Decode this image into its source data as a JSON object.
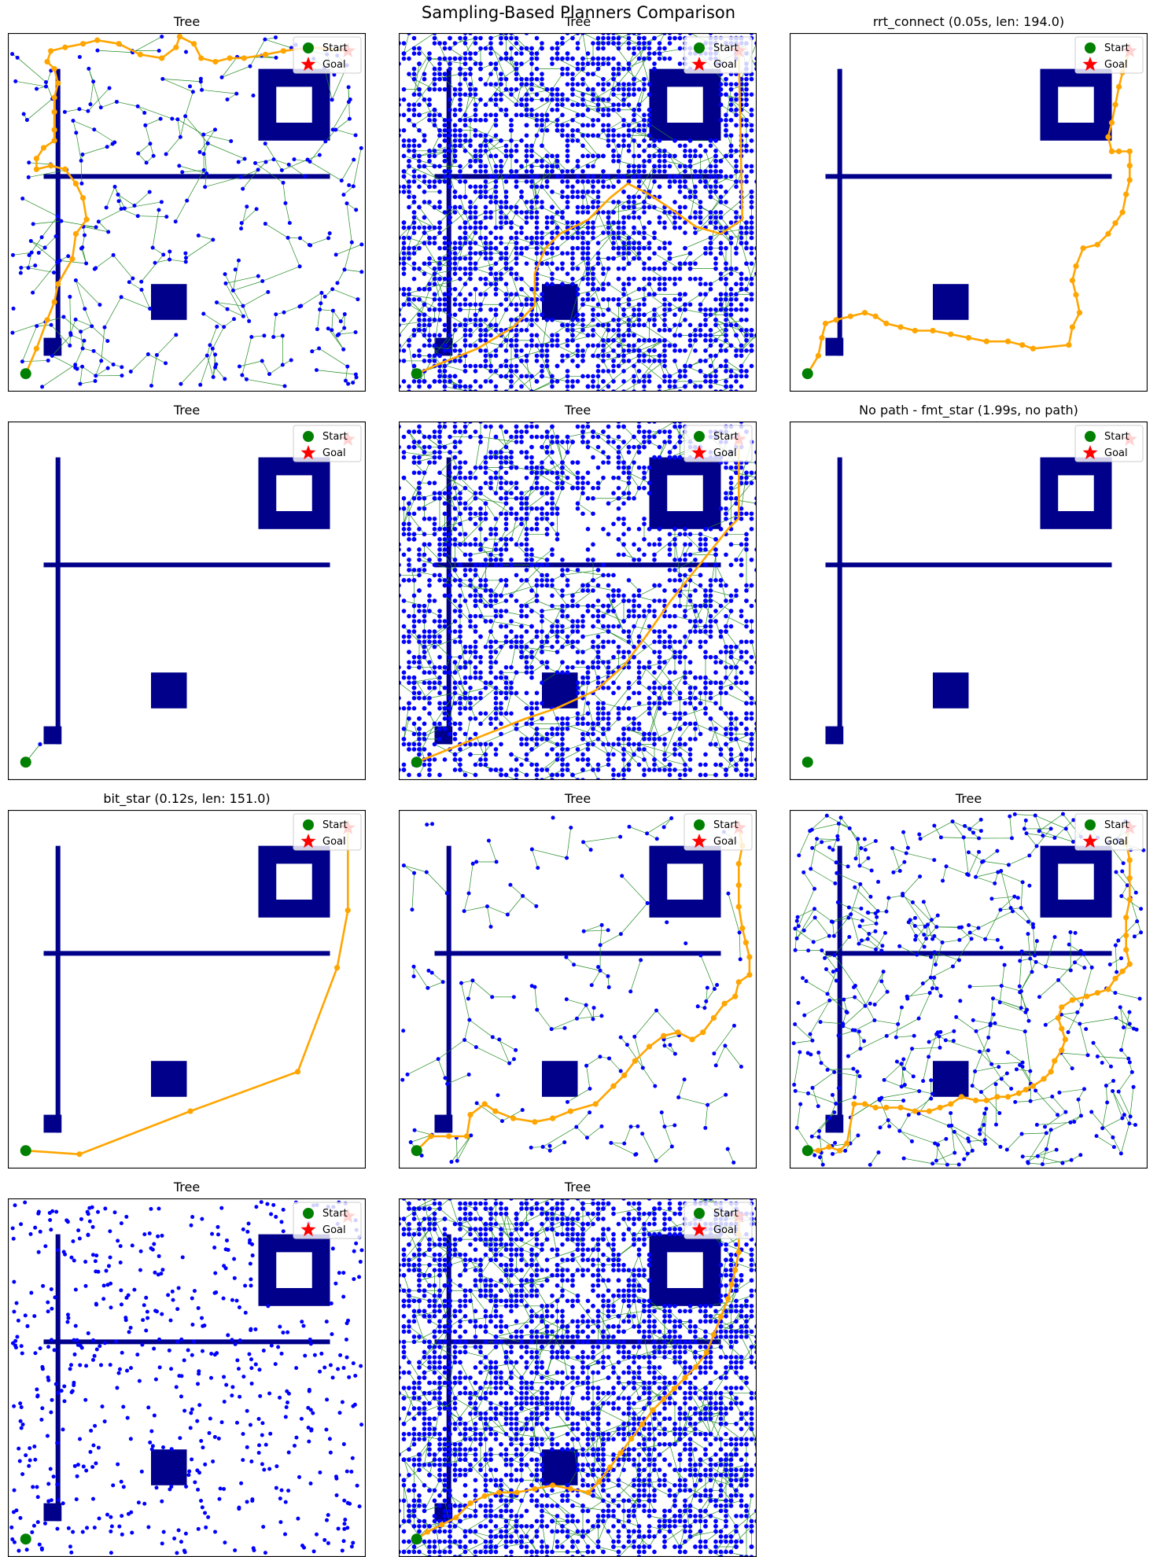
{
  "figure": {
    "suptitle": "Sampling-Based Planners Comparison",
    "colors": {
      "obstacle": "#00008b",
      "node": "#0000ff",
      "edge": "#228b22",
      "path": "#ffa500",
      "start": "#008000",
      "goal": "#ff0000"
    },
    "legend": {
      "start_label": "Start",
      "goal_label": "Goal",
      "location": "upper right"
    }
  },
  "obstacles": {
    "vertical_bar": {
      "x": [
        14,
        14
      ],
      "y": [
        10,
        90
      ]
    },
    "horizontal_bar": {
      "x": [
        10,
        90
      ],
      "y": [
        60,
        60
      ]
    },
    "ring_outer": {
      "x": [
        70,
        90
      ],
      "y": [
        70,
        90
      ]
    },
    "ring_hole": {
      "x": [
        75,
        85
      ],
      "y": [
        75,
        85
      ]
    },
    "square_large": {
      "x": [
        40,
        50
      ],
      "y": [
        20,
        30
      ]
    },
    "square_small": {
      "x": [
        10,
        15
      ],
      "y": [
        10,
        15
      ]
    }
  },
  "chart_data": [
    {
      "type": "scatter",
      "title": "Tree",
      "xlim": [
        0,
        100
      ],
      "ylim": [
        0,
        100
      ],
      "start": [
        5,
        5
      ],
      "goal": [
        95,
        95
      ],
      "tree": {
        "style": "sparse",
        "nodes": 330,
        "edges": true
      },
      "path": {
        "shown": true,
        "nodes_marked": true,
        "points": [
          [
            5,
            5
          ],
          [
            8,
            12
          ],
          [
            11,
            20
          ],
          [
            13,
            25
          ],
          [
            14,
            30
          ],
          [
            18,
            37
          ],
          [
            19,
            44
          ],
          [
            22,
            48
          ],
          [
            21,
            54
          ],
          [
            19,
            58
          ],
          [
            16,
            62
          ],
          [
            12,
            63
          ],
          [
            8,
            62
          ],
          [
            8,
            65
          ],
          [
            10,
            68
          ],
          [
            13,
            70
          ],
          [
            13,
            73
          ],
          [
            13,
            78
          ],
          [
            13,
            82
          ],
          [
            14,
            86
          ],
          [
            13,
            90
          ],
          [
            11,
            92
          ],
          [
            12,
            95
          ],
          [
            16,
            96
          ],
          [
            21,
            97
          ],
          [
            25,
            98
          ],
          [
            31,
            97
          ],
          [
            37,
            94
          ],
          [
            43,
            93
          ],
          [
            47,
            96
          ],
          [
            48,
            99
          ],
          [
            52,
            97
          ],
          [
            54,
            93
          ],
          [
            58,
            92
          ],
          [
            62,
            93
          ],
          [
            66,
            93
          ],
          [
            72,
            94
          ],
          [
            77,
            95
          ],
          [
            85,
            96
          ],
          [
            95,
            95
          ]
        ]
      }
    },
    {
      "type": "scatter",
      "title": "Tree",
      "xlim": [
        0,
        100
      ],
      "ylim": [
        0,
        100
      ],
      "start": [
        5,
        5
      ],
      "goal": [
        95,
        95
      ],
      "tree": {
        "style": "dense",
        "nodes": 3200,
        "edges": true
      },
      "path": {
        "shown": true,
        "nodes_marked": false,
        "points": [
          [
            5,
            5
          ],
          [
            12,
            8
          ],
          [
            22,
            12
          ],
          [
            32,
            18
          ],
          [
            38,
            24
          ],
          [
            38,
            33
          ],
          [
            41,
            40
          ],
          [
            45,
            44
          ],
          [
            53,
            48
          ],
          [
            59,
            54
          ],
          [
            64,
            58
          ],
          [
            70,
            55
          ],
          [
            76,
            51
          ],
          [
            83,
            46
          ],
          [
            90,
            44
          ],
          [
            96,
            48
          ],
          [
            95,
            95
          ]
        ]
      }
    },
    {
      "type": "scatter",
      "title": "rrt_connect (0.05s, len: 194.0)",
      "xlim": [
        0,
        100
      ],
      "ylim": [
        0,
        100
      ],
      "start": [
        5,
        5
      ],
      "goal": [
        95,
        95
      ],
      "tree": {
        "style": "none"
      },
      "path": {
        "shown": true,
        "nodes_marked": true,
        "points": [
          [
            5,
            5
          ],
          [
            8,
            10
          ],
          [
            9,
            15
          ],
          [
            10,
            19
          ],
          [
            13,
            20
          ],
          [
            17,
            21
          ],
          [
            21,
            22
          ],
          [
            24,
            21
          ],
          [
            27,
            19
          ],
          [
            31,
            18
          ],
          [
            35,
            17
          ],
          [
            40,
            17
          ],
          [
            45,
            16
          ],
          [
            50,
            15
          ],
          [
            55,
            14
          ],
          [
            61,
            14
          ],
          [
            65,
            13
          ],
          [
            68,
            12
          ],
          [
            78,
            13
          ],
          [
            79,
            18
          ],
          [
            81,
            22
          ],
          [
            80,
            27
          ],
          [
            79,
            31
          ],
          [
            80,
            35
          ],
          [
            82,
            40
          ],
          [
            86,
            41
          ],
          [
            89,
            44
          ],
          [
            91,
            47
          ],
          [
            93,
            50
          ],
          [
            94,
            55
          ],
          [
            95,
            59
          ],
          [
            95,
            63
          ],
          [
            95,
            67
          ],
          [
            92,
            67
          ],
          [
            90,
            67
          ],
          [
            89,
            71
          ],
          [
            90,
            75
          ],
          [
            91,
            80
          ],
          [
            92,
            85
          ],
          [
            93,
            89
          ],
          [
            95,
            95
          ]
        ]
      }
    },
    {
      "type": "scatter",
      "title": "Tree",
      "xlim": [
        0,
        100
      ],
      "ylim": [
        0,
        100
      ],
      "start": [
        5,
        5
      ],
      "goal": [
        95,
        95
      ],
      "tree": {
        "style": "minimal",
        "nodes": 2,
        "edges": true
      },
      "path": {
        "shown": false
      }
    },
    {
      "type": "scatter",
      "title": "Tree",
      "xlim": [
        0,
        100
      ],
      "ylim": [
        0,
        100
      ],
      "start": [
        5,
        5
      ],
      "goal": [
        95,
        95
      ],
      "tree": {
        "style": "dense-with-clearings",
        "nodes": 2600,
        "edges": true
      },
      "path": {
        "shown": true,
        "nodes_marked": false,
        "points": [
          [
            5,
            5
          ],
          [
            15,
            9
          ],
          [
            25,
            13
          ],
          [
            35,
            17
          ],
          [
            44,
            20
          ],
          [
            55,
            25
          ],
          [
            63,
            32
          ],
          [
            69,
            40
          ],
          [
            76,
            50
          ],
          [
            84,
            60
          ],
          [
            92,
            70
          ],
          [
            95,
            73
          ],
          [
            95,
            95
          ]
        ]
      }
    },
    {
      "type": "scatter",
      "title": "No path - fmt_star (1.99s, no path)",
      "xlim": [
        0,
        100
      ],
      "ylim": [
        0,
        100
      ],
      "start": [
        5,
        5
      ],
      "goal": [
        95,
        95
      ],
      "tree": {
        "style": "none"
      },
      "path": {
        "shown": false
      }
    },
    {
      "type": "scatter",
      "title": "bit_star (0.12s, len: 151.0)",
      "xlim": [
        0,
        100
      ],
      "ylim": [
        0,
        100
      ],
      "start": [
        5,
        5
      ],
      "goal": [
        95,
        95
      ],
      "tree": {
        "style": "none"
      },
      "path": {
        "shown": true,
        "nodes_marked": true,
        "points": [
          [
            5,
            5
          ],
          [
            20,
            4
          ],
          [
            51,
            16
          ],
          [
            81,
            27
          ],
          [
            92,
            56
          ],
          [
            95,
            72
          ],
          [
            95,
            95
          ]
        ]
      }
    },
    {
      "type": "scatter",
      "title": "Tree",
      "xlim": [
        0,
        100
      ],
      "ylim": [
        0,
        100
      ],
      "start": [
        5,
        5
      ],
      "goal": [
        95,
        95
      ],
      "tree": {
        "style": "sparse",
        "nodes": 170,
        "edges": true
      },
      "path": {
        "shown": true,
        "nodes_marked": true,
        "points": [
          [
            5,
            5
          ],
          [
            9,
            9
          ],
          [
            14,
            9
          ],
          [
            19,
            9
          ],
          [
            20,
            15
          ],
          [
            24,
            18
          ],
          [
            27,
            16
          ],
          [
            32,
            14
          ],
          [
            38,
            13
          ],
          [
            43,
            14
          ],
          [
            48,
            16
          ],
          [
            55,
            18
          ],
          [
            60,
            23
          ],
          [
            63,
            26
          ],
          [
            66,
            30
          ],
          [
            70,
            34
          ],
          [
            74,
            37
          ],
          [
            78,
            38
          ],
          [
            82,
            36
          ],
          [
            85,
            38
          ],
          [
            88,
            42
          ],
          [
            91,
            46
          ],
          [
            94,
            48
          ],
          [
            95,
            52
          ],
          [
            98,
            54
          ],
          [
            98,
            59
          ],
          [
            97,
            63
          ],
          [
            96,
            67
          ],
          [
            95,
            73
          ],
          [
            95,
            79
          ],
          [
            95,
            85
          ],
          [
            96,
            90
          ],
          [
            95,
            95
          ]
        ]
      }
    },
    {
      "type": "scatter",
      "title": "Tree",
      "xlim": [
        0,
        100
      ],
      "ylim": [
        0,
        100
      ],
      "start": [
        5,
        5
      ],
      "goal": [
        95,
        95
      ],
      "tree": {
        "style": "sparse",
        "nodes": 520,
        "edges": true
      },
      "path": {
        "shown": true,
        "nodes_marked": true,
        "points": [
          [
            5,
            5
          ],
          [
            8,
            5
          ],
          [
            11,
            6
          ],
          [
            14,
            5
          ],
          [
            16,
            7
          ],
          [
            18,
            18
          ],
          [
            21,
            18
          ],
          [
            24,
            17
          ],
          [
            27,
            17
          ],
          [
            31,
            17
          ],
          [
            35,
            16
          ],
          [
            39,
            16
          ],
          [
            42,
            17
          ],
          [
            45,
            18
          ],
          [
            48,
            20
          ],
          [
            52,
            19
          ],
          [
            55,
            19
          ],
          [
            58,
            20
          ],
          [
            61,
            20
          ],
          [
            64,
            21
          ],
          [
            66,
            22
          ],
          [
            68,
            23
          ],
          [
            71,
            25
          ],
          [
            73,
            27
          ],
          [
            74,
            30
          ],
          [
            76,
            33
          ],
          [
            77,
            36
          ],
          [
            76,
            39
          ],
          [
            75,
            42
          ],
          [
            76,
            45
          ],
          [
            79,
            47
          ],
          [
            83,
            48
          ],
          [
            86,
            49
          ],
          [
            89,
            50
          ],
          [
            91,
            53
          ],
          [
            93,
            55
          ],
          [
            95,
            57
          ],
          [
            94,
            61
          ],
          [
            94,
            65
          ],
          [
            94,
            70
          ],
          [
            95,
            75
          ],
          [
            95,
            81
          ],
          [
            95,
            86
          ],
          [
            94,
            91
          ],
          [
            95,
            95
          ]
        ]
      }
    },
    {
      "type": "scatter",
      "title": "Tree",
      "xlim": [
        0,
        100
      ],
      "ylim": [
        0,
        100
      ],
      "start": [
        5,
        5
      ],
      "goal": [
        95,
        95
      ],
      "tree": {
        "style": "dotted-branches",
        "nodes": 620,
        "edges": false
      },
      "path": {
        "shown": false
      }
    },
    {
      "type": "scatter",
      "title": "Tree",
      "xlim": [
        0,
        100
      ],
      "ylim": [
        0,
        100
      ],
      "start": [
        5,
        5
      ],
      "goal": [
        95,
        95
      ],
      "tree": {
        "style": "dense",
        "nodes": 3600,
        "edges": true
      },
      "path": {
        "shown": true,
        "nodes_marked": true,
        "points": [
          [
            5,
            5
          ],
          [
            8,
            7
          ],
          [
            12,
            9
          ],
          [
            16,
            11
          ],
          [
            20,
            15
          ],
          [
            24,
            17
          ],
          [
            28,
            18
          ],
          [
            33,
            18
          ],
          [
            38,
            19
          ],
          [
            43,
            20
          ],
          [
            48,
            19
          ],
          [
            53,
            18
          ],
          [
            56,
            21
          ],
          [
            59,
            25
          ],
          [
            62,
            29
          ],
          [
            65,
            33
          ],
          [
            68,
            37
          ],
          [
            71,
            41
          ],
          [
            74,
            44
          ],
          [
            77,
            47
          ],
          [
            80,
            50
          ],
          [
            83,
            53
          ],
          [
            86,
            57
          ],
          [
            88,
            62
          ],
          [
            90,
            67
          ],
          [
            92,
            72
          ],
          [
            93,
            76
          ],
          [
            94,
            80
          ],
          [
            95,
            85
          ],
          [
            95,
            90
          ],
          [
            95,
            95
          ]
        ]
      }
    }
  ]
}
